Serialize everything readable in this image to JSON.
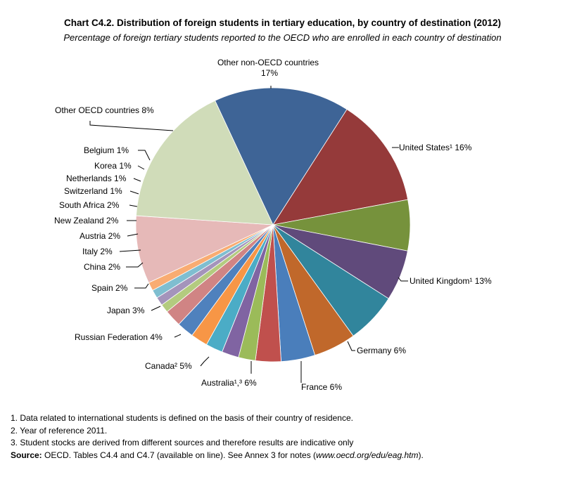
{
  "title": "Chart C4.2.  Distribution of foreign students in tertiary education, by country of destination (2012)",
  "subtitle": "Percentage of foreign tertiary students reported to the OECD who are enrolled in each country of destination",
  "chart_data": {
    "type": "pie",
    "title": "Chart C4.2.  Distribution of foreign students in tertiary education, by country of destination (2012)",
    "unit": "%",
    "slices": [
      {
        "label": "United States¹",
        "value": 16,
        "display": "16%",
        "color": "#3e6496"
      },
      {
        "label": "United Kingdom¹",
        "value": 13,
        "display": "13%",
        "color": "#953a3a"
      },
      {
        "label": "Germany",
        "value": 6,
        "display": "6%",
        "color": "#76923c"
      },
      {
        "label": "France",
        "value": 6,
        "display": "6%",
        "color": "#604a7b"
      },
      {
        "label": "Australia¹,³",
        "value": 6,
        "display": "6%",
        "color": "#31859c"
      },
      {
        "label": "Canada²",
        "value": 5,
        "display": "5%",
        "color": "#c0682b"
      },
      {
        "label": "Russian Federation",
        "value": 4,
        "display": "4%",
        "color": "#4a7ebb"
      },
      {
        "label": "Japan",
        "value": 3,
        "display": "3%",
        "color": "#c0504d"
      },
      {
        "label": "Spain",
        "value": 2,
        "display": "2%",
        "color": "#9bbb59"
      },
      {
        "label": "China",
        "value": 2,
        "display": "2%",
        "color": "#8064a2"
      },
      {
        "label": "Italy",
        "value": 2,
        "display": "2%",
        "color": "#4bacc6"
      },
      {
        "label": "Austria",
        "value": 2,
        "display": "2%",
        "color": "#f79646"
      },
      {
        "label": "New Zealand",
        "value": 2,
        "display": "2%",
        "color": "#4f81bd"
      },
      {
        "label": "South Africa",
        "value": 2,
        "display": "2%",
        "color": "#d08484"
      },
      {
        "label": "Switzerland",
        "value": 1,
        "display": "1%",
        "color": "#b3cb7f"
      },
      {
        "label": "Netherlands",
        "value": 1,
        "display": "1%",
        "color": "#a494bb"
      },
      {
        "label": "Korea",
        "value": 1,
        "display": "1%",
        "color": "#7fbed0"
      },
      {
        "label": "Belgium",
        "value": 1,
        "display": "1%",
        "color": "#f9ac72"
      },
      {
        "label": "Other OECD countries",
        "value": 8,
        "display": "8%",
        "color": "#e6b9b8"
      },
      {
        "label": "Other non-OECD countries",
        "value": 17,
        "display": "17%",
        "color": "#d0dcb9"
      }
    ]
  },
  "notes": {
    "note1": "1. Data related to international students is defined on the basis of their country of residence.",
    "note2": "2. Year of reference 2011.",
    "note3": "3. Student stocks are derived from different sources and therefore results are indicative only",
    "source_label": "Source:",
    "source_text": " OECD. Tables  C4.4 and C4.7 (available on line). See Annex 3 for notes (",
    "source_url": "www.oecd.org/edu/eag.htm",
    "source_end": ")."
  }
}
